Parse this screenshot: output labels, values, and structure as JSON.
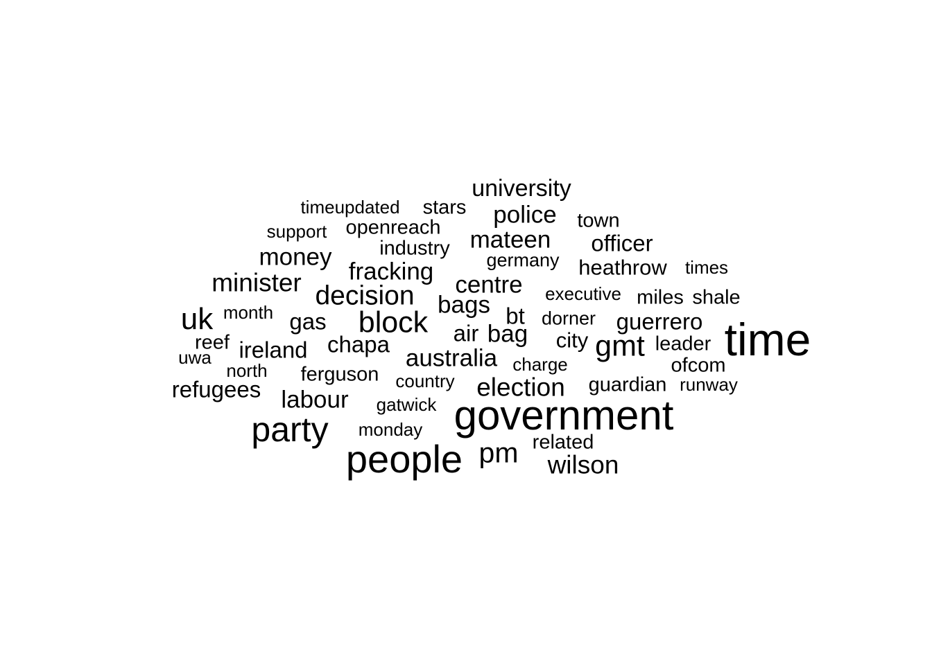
{
  "word_cloud": {
    "words": [
      "time",
      "government",
      "people",
      "party",
      "block",
      "gmt",
      "pm",
      "uk",
      "decision",
      "minister",
      "election",
      "wilson",
      "mateen",
      "police",
      "centre",
      "university",
      "labour",
      "bag",
      "australia",
      "bags",
      "money",
      "fracking",
      "heathrow",
      "refugees",
      "chapa",
      "guerrero",
      "ireland",
      "officer",
      "gas",
      "bt",
      "air",
      "city",
      "town",
      "guardian",
      "reef",
      "related",
      "leader",
      "ferguson",
      "openreach",
      "ofcom",
      "timeupdated",
      "stars",
      "industry",
      "miles",
      "shale",
      "germany",
      "times",
      "monday",
      "dorner",
      "executive",
      "charge",
      "country",
      "gatwick",
      "runway",
      "month",
      "north",
      "uwa",
      "support"
    ]
  }
}
